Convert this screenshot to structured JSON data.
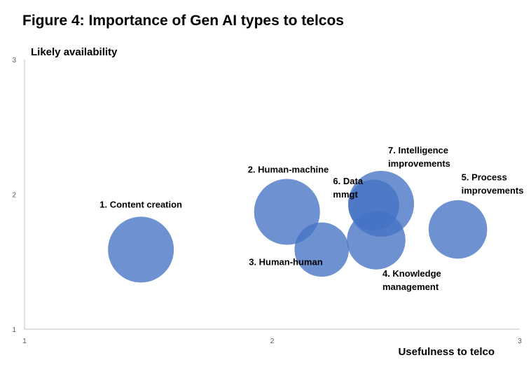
{
  "figure_title": "Figure 4: Importance of Gen AI types to telcos",
  "chart_data": {
    "type": "bubble",
    "title": "Figure 4: Importance of Gen AI types to telcos",
    "xlabel": "Usefulness to telco",
    "ylabel": "Likely availability",
    "xlim": [
      1,
      3
    ],
    "ylim": [
      1,
      3
    ],
    "x_ticks": [
      "1",
      "2",
      "3"
    ],
    "y_ticks": [
      "1",
      "2",
      "3"
    ],
    "grid": false,
    "bubble_color": "#4472C4",
    "series": [
      {
        "name": "1. Content creation",
        "label_lines": [
          "1. Content creation"
        ],
        "x": 1.47,
        "y": 1.59,
        "size": 1.0
      },
      {
        "name": "2. Human-machine",
        "label_lines": [
          "2. Human-machine"
        ],
        "x": 2.06,
        "y": 1.87,
        "size": 1.0
      },
      {
        "name": "3. Human-human",
        "label_lines": [
          "3. Human-human"
        ],
        "x": 2.2,
        "y": 1.59,
        "size": 0.68
      },
      {
        "name": "4. Knowledge management",
        "label_lines": [
          "4. Knowledge",
          "management"
        ],
        "x": 2.42,
        "y": 1.66,
        "size": 0.79
      },
      {
        "name": "5. Process improvements",
        "label_lines": [
          "5. Process",
          "improvements"
        ],
        "x": 2.75,
        "y": 1.74,
        "size": 0.79
      },
      {
        "name": "6. Data mmgt",
        "label_lines": [
          "6. Data",
          "mmgt"
        ],
        "x": 2.41,
        "y": 1.92,
        "size": 0.6
      },
      {
        "name": "7. Intelligence improvements",
        "label_lines": [
          "7. Intelligence",
          "improvements"
        ],
        "x": 2.44,
        "y": 1.93,
        "size": 1.0
      }
    ]
  }
}
